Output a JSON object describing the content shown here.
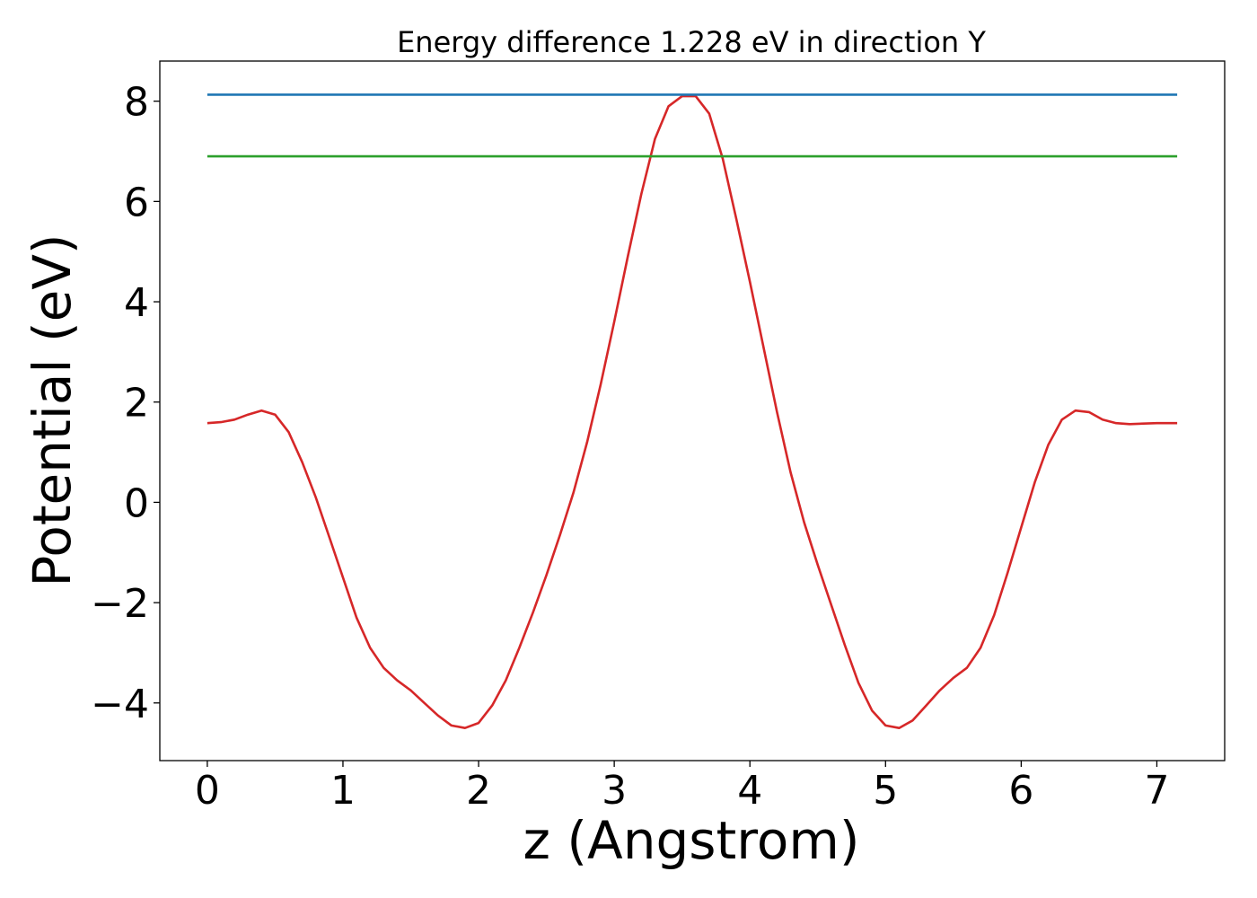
{
  "chart_data": {
    "type": "line",
    "title": "Energy difference 1.228 eV in direction Y",
    "xlabel": "z (Angstrom)",
    "ylabel": "Potential (eV)",
    "xlim": [
      -0.35,
      7.5
    ],
    "ylim": [
      -5.15,
      8.8
    ],
    "xticks": [
      0,
      1,
      2,
      3,
      4,
      5,
      6,
      7
    ],
    "xtick_labels": [
      "0",
      "1",
      "2",
      "3",
      "4",
      "5",
      "6",
      "7"
    ],
    "yticks": [
      -4,
      -2,
      0,
      2,
      4,
      6,
      8
    ],
    "ytick_labels": [
      "−4",
      "−2",
      "0",
      "2",
      "4",
      "6",
      "8"
    ],
    "grid": false,
    "series": [
      {
        "color": "#d62728",
        "x": [
          0.0,
          0.1,
          0.2,
          0.3,
          0.4,
          0.5,
          0.6,
          0.7,
          0.8,
          0.9,
          1.0,
          1.1,
          1.2,
          1.3,
          1.4,
          1.5,
          1.6,
          1.7,
          1.8,
          1.9,
          2.0,
          2.1,
          2.2,
          2.3,
          2.4,
          2.5,
          2.6,
          2.7,
          2.8,
          2.9,
          3.0,
          3.1,
          3.2,
          3.3,
          3.4,
          3.5,
          3.6,
          3.7,
          3.8,
          3.9,
          4.0,
          4.1,
          4.2,
          4.3,
          4.4,
          4.5,
          4.6,
          4.7,
          4.8,
          4.9,
          5.0,
          5.1,
          5.2,
          5.3,
          5.4,
          5.5,
          5.6,
          5.7,
          5.8,
          5.9,
          6.0,
          6.1,
          6.2,
          6.3,
          6.4,
          6.5,
          6.6,
          6.7,
          6.8,
          6.9,
          7.0,
          7.15
        ],
        "y": [
          1.58,
          1.6,
          1.65,
          1.75,
          1.83,
          1.75,
          1.4,
          0.8,
          0.1,
          -0.7,
          -1.5,
          -2.3,
          -2.9,
          -3.3,
          -3.55,
          -3.75,
          -4.0,
          -4.25,
          -4.45,
          -4.5,
          -4.4,
          -4.05,
          -3.55,
          -2.9,
          -2.2,
          -1.45,
          -0.65,
          0.2,
          1.2,
          2.35,
          3.6,
          4.9,
          6.15,
          7.25,
          7.9,
          8.1,
          8.1,
          7.75,
          6.85,
          5.65,
          4.4,
          3.1,
          1.8,
          0.6,
          -0.4,
          -1.25,
          -2.05,
          -2.85,
          -3.6,
          -4.15,
          -4.45,
          -4.5,
          -4.35,
          -4.05,
          -3.75,
          -3.5,
          -3.3,
          -2.9,
          -2.25,
          -1.4,
          -0.5,
          0.4,
          1.15,
          1.65,
          1.83,
          1.8,
          1.65,
          1.58,
          1.56,
          1.57,
          1.58,
          1.58
        ]
      },
      {
        "color": "#1f77b4",
        "x": [
          0.0,
          7.15
        ],
        "y": [
          8.13,
          8.13
        ]
      },
      {
        "color": "#2ca02c",
        "x": [
          0.0,
          7.15
        ],
        "y": [
          6.9,
          6.9
        ]
      }
    ]
  }
}
